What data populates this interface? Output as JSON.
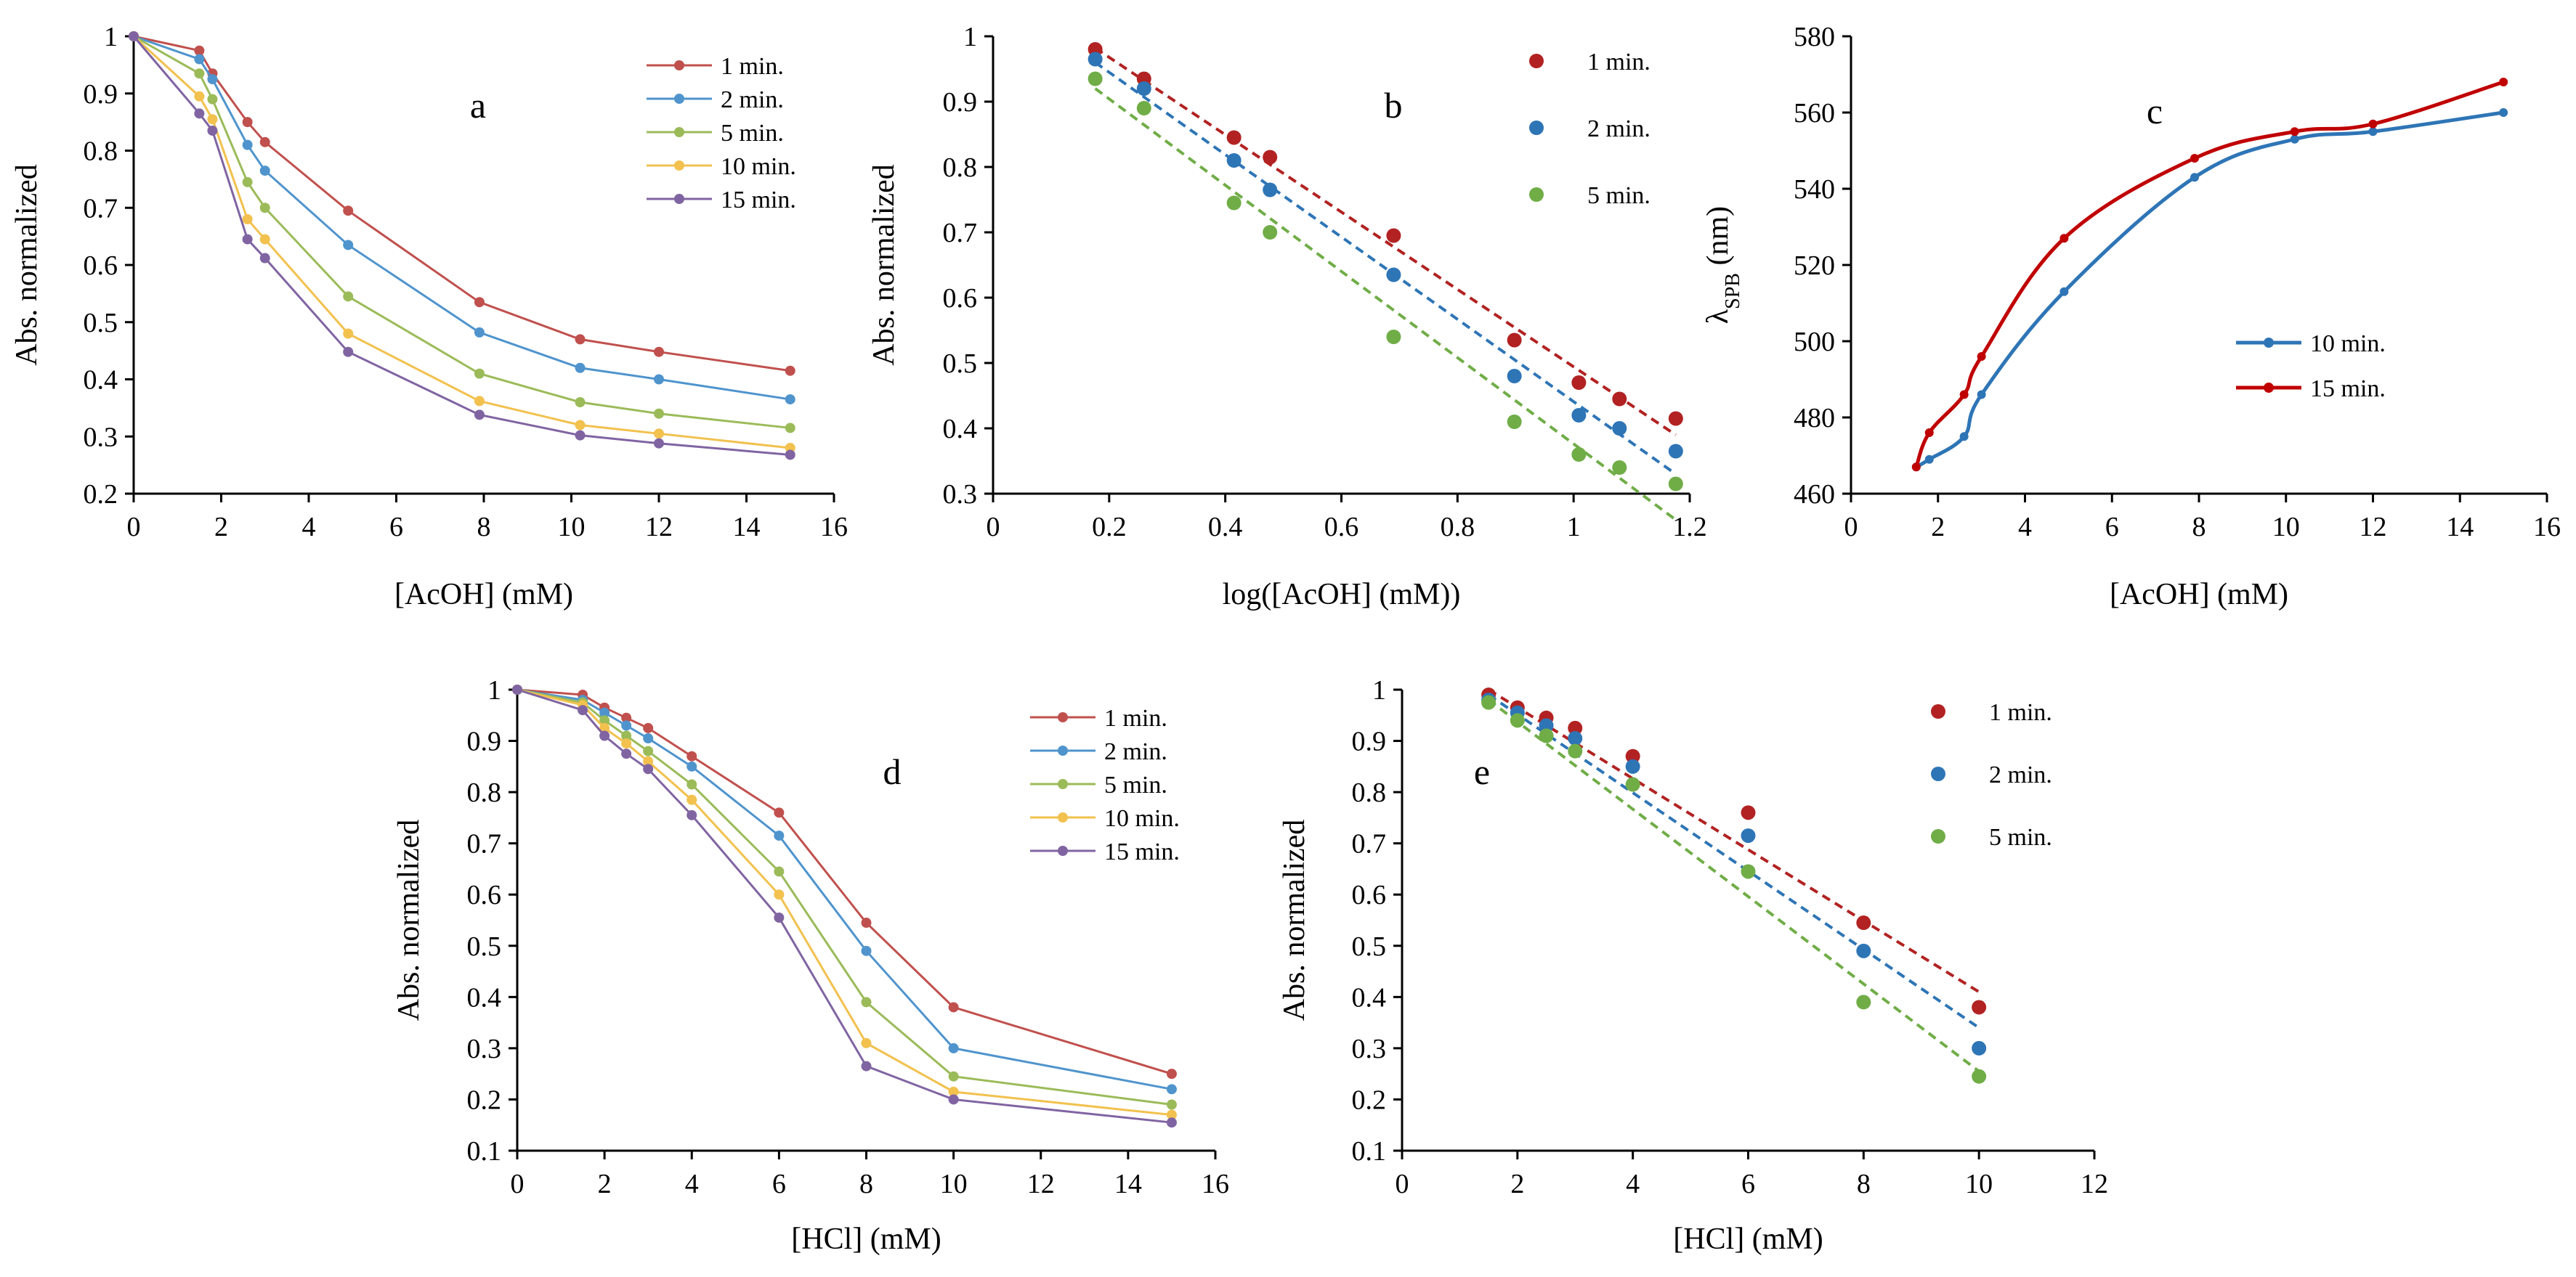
{
  "colors": {
    "s1": "#C0504D",
    "s2": "#4F94CD",
    "s5": "#9BBB59",
    "s10": "#F2C14E",
    "s15": "#8064A2",
    "dot1": "#B22222",
    "dot2": "#2E75B6",
    "dot5": "#70AD47",
    "c10": "#2E75B6",
    "c15": "#C00000"
  },
  "chart_data": [
    {
      "panel": "a",
      "type": "line",
      "label": "a",
      "xlabel": "[AcOH] (mM)",
      "ylabel": "Abs. normalized",
      "xlim": [
        0,
        16
      ],
      "ylim": [
        0.2,
        1
      ],
      "xticks": [
        0,
        2,
        4,
        6,
        8,
        10,
        12,
        14,
        16
      ],
      "xtick_labels": [
        "0",
        "2",
        "4",
        "6",
        "8",
        "10",
        "12",
        "14",
        "16"
      ],
      "yticks": [
        0.2,
        0.3,
        0.4,
        0.5,
        0.6,
        0.7,
        0.8,
        0.9,
        1
      ],
      "ytick_labels": [
        "0.2",
        "0.3",
        "0.4",
        "0.5",
        "0.6",
        "0.7",
        "0.8",
        "0.9",
        "1"
      ],
      "legend_position": "top-right",
      "x": [
        0,
        1.5,
        1.8,
        2.6,
        3.0,
        4.9,
        7.9,
        10.2,
        12.0,
        15.0
      ],
      "series": [
        {
          "name": "1 min.",
          "color_key": "s1",
          "values": [
            1.0,
            0.975,
            0.935,
            0.85,
            0.815,
            0.695,
            0.535,
            0.47,
            0.448,
            0.415
          ]
        },
        {
          "name": "2 min.",
          "color_key": "s2",
          "values": [
            1.0,
            0.96,
            0.925,
            0.81,
            0.765,
            0.635,
            0.482,
            0.42,
            0.4,
            0.365
          ]
        },
        {
          "name": "5 min.",
          "color_key": "s5",
          "values": [
            1.0,
            0.935,
            0.89,
            0.745,
            0.7,
            0.545,
            0.41,
            0.36,
            0.34,
            0.315
          ]
        },
        {
          "name": "10 min.",
          "color_key": "s10",
          "values": [
            1.0,
            0.895,
            0.855,
            0.68,
            0.645,
            0.48,
            0.362,
            0.32,
            0.305,
            0.28
          ]
        },
        {
          "name": "15 min.",
          "color_key": "s15",
          "values": [
            1.0,
            0.865,
            0.835,
            0.645,
            0.612,
            0.448,
            0.338,
            0.302,
            0.288,
            0.268
          ]
        }
      ]
    },
    {
      "panel": "b",
      "type": "scatter",
      "label": "b",
      "xlabel": "log([AcOH] (mM))",
      "ylabel": "Abs. normalized",
      "xlim": [
        0,
        1.2
      ],
      "ylim": [
        0.3,
        1
      ],
      "xticks": [
        0,
        0.2,
        0.4,
        0.6,
        0.8,
        1,
        1.2
      ],
      "xtick_labels": [
        "0",
        "0.2",
        "0.4",
        "0.6",
        "0.8",
        "1",
        "1.2"
      ],
      "yticks": [
        0.3,
        0.4,
        0.5,
        0.6,
        0.7,
        0.8,
        0.9,
        1
      ],
      "ytick_labels": [
        "0.3",
        "0.4",
        "0.5",
        "0.6",
        "0.7",
        "0.8",
        "0.9",
        "1"
      ],
      "legend_position": "top-right",
      "x": [
        0.176,
        0.26,
        0.415,
        0.477,
        0.69,
        0.898,
        1.009,
        1.079,
        1.176
      ],
      "series": [
        {
          "name": "1 min.",
          "color_key": "dot1",
          "values": [
            0.98,
            0.935,
            0.845,
            0.815,
            0.695,
            0.535,
            0.47,
            0.445,
            0.415
          ],
          "fit": [
            [
              0.176,
              0.982
            ],
            [
              1.176,
              0.39
            ]
          ]
        },
        {
          "name": "2 min.",
          "color_key": "dot2",
          "values": [
            0.965,
            0.92,
            0.81,
            0.765,
            0.635,
            0.48,
            0.42,
            0.4,
            0.365
          ],
          "fit": [
            [
              0.176,
              0.96
            ],
            [
              1.176,
              0.33
            ]
          ]
        },
        {
          "name": "5 min.",
          "color_key": "dot5",
          "values": [
            0.935,
            0.89,
            0.745,
            0.7,
            0.54,
            0.41,
            0.36,
            0.34,
            0.315
          ],
          "fit": [
            [
              0.176,
              0.92
            ],
            [
              1.176,
              0.26
            ]
          ]
        }
      ]
    },
    {
      "panel": "c",
      "type": "line",
      "label": "c",
      "xlabel": "[AcOH] (mM)",
      "ylabel_main": "λ",
      "ylabel_sub": "SPB",
      "ylabel_unit": " (nm)",
      "xlim": [
        0,
        16
      ],
      "ylim": [
        460,
        580
      ],
      "xticks": [
        0,
        2,
        4,
        6,
        8,
        10,
        12,
        14,
        16
      ],
      "xtick_labels": [
        "0",
        "2",
        "4",
        "6",
        "8",
        "10",
        "12",
        "14",
        "16"
      ],
      "yticks": [
        460,
        480,
        500,
        520,
        540,
        560,
        580
      ],
      "ytick_labels": [
        "460",
        "480",
        "500",
        "520",
        "540",
        "560",
        "580"
      ],
      "legend_position": "center-right",
      "series": [
        {
          "name": "10 min.",
          "color_key": "c10",
          "x": [
            1.5,
            1.8,
            2.6,
            3.0,
            4.9,
            7.9,
            10.2,
            12.0,
            15.0
          ],
          "values": [
            467,
            469,
            475,
            486,
            513,
            543,
            553,
            555,
            560
          ]
        },
        {
          "name": "15 min.",
          "color_key": "c15",
          "x": [
            1.5,
            1.8,
            2.6,
            3.0,
            4.9,
            7.9,
            10.2,
            12.0,
            15.0
          ],
          "values": [
            467,
            476,
            486,
            496,
            527,
            548,
            555,
            557,
            568
          ]
        }
      ]
    },
    {
      "panel": "d",
      "type": "line",
      "label": "d",
      "xlabel": "[HCl] (mM)",
      "ylabel": "Abs. normalized",
      "xlim": [
        0,
        16
      ],
      "ylim": [
        0.1,
        1
      ],
      "xticks": [
        0,
        2,
        4,
        6,
        8,
        10,
        12,
        14,
        16
      ],
      "xtick_labels": [
        "0",
        "2",
        "4",
        "6",
        "8",
        "10",
        "12",
        "14",
        "16"
      ],
      "yticks": [
        0.1,
        0.2,
        0.3,
        0.4,
        0.5,
        0.6,
        0.7,
        0.8,
        0.9,
        1
      ],
      "ytick_labels": [
        "0.1",
        "0.2",
        "0.3",
        "0.4",
        "0.5",
        "0.6",
        "0.7",
        "0.8",
        "0.9",
        "1"
      ],
      "legend_position": "top-right",
      "x": [
        0,
        1.5,
        2.0,
        2.5,
        3.0,
        4.0,
        6.0,
        8.0,
        10.0,
        15.0
      ],
      "series": [
        {
          "name": "1 min.",
          "color_key": "s1",
          "values": [
            1.0,
            0.99,
            0.965,
            0.945,
            0.925,
            0.87,
            0.76,
            0.545,
            0.38,
            0.25
          ]
        },
        {
          "name": "2 min.",
          "color_key": "s2",
          "values": [
            1.0,
            0.98,
            0.955,
            0.93,
            0.905,
            0.85,
            0.715,
            0.49,
            0.3,
            0.22
          ]
        },
        {
          "name": "5 min.",
          "color_key": "s5",
          "values": [
            1.0,
            0.975,
            0.94,
            0.91,
            0.88,
            0.815,
            0.645,
            0.39,
            0.245,
            0.19
          ]
        },
        {
          "name": "10 min.",
          "color_key": "s10",
          "values": [
            1.0,
            0.97,
            0.925,
            0.895,
            0.86,
            0.785,
            0.6,
            0.31,
            0.215,
            0.17
          ]
        },
        {
          "name": "15 min.",
          "color_key": "s15",
          "values": [
            1.0,
            0.96,
            0.91,
            0.875,
            0.845,
            0.755,
            0.555,
            0.265,
            0.2,
            0.155
          ]
        }
      ]
    },
    {
      "panel": "e",
      "type": "scatter",
      "label": "e",
      "xlabel": "[HCl] (mM)",
      "ylabel": "Abs. normalized",
      "xlim": [
        0,
        12
      ],
      "ylim": [
        0.1,
        1
      ],
      "xticks": [
        0,
        2,
        4,
        6,
        8,
        10,
        12
      ],
      "xtick_labels": [
        "0",
        "2",
        "4",
        "6",
        "8",
        "10",
        "12"
      ],
      "yticks": [
        0.1,
        0.2,
        0.3,
        0.4,
        0.5,
        0.6,
        0.7,
        0.8,
        0.9,
        1
      ],
      "ytick_labels": [
        "0.1",
        "0.2",
        "0.3",
        "0.4",
        "0.5",
        "0.6",
        "0.7",
        "0.8",
        "0.9",
        "1"
      ],
      "legend_position": "top-right",
      "x": [
        1.5,
        2.0,
        2.5,
        3.0,
        4.0,
        6.0,
        8.0,
        10.0
      ],
      "series": [
        {
          "name": "1 min.",
          "color_key": "dot1",
          "values": [
            0.99,
            0.965,
            0.945,
            0.925,
            0.87,
            0.76,
            0.545,
            0.38
          ],
          "fit": [
            [
              1.5,
              1.0
            ],
            [
              10.0,
              0.41
            ]
          ]
        },
        {
          "name": "2 min.",
          "color_key": "dot2",
          "values": [
            0.98,
            0.955,
            0.93,
            0.905,
            0.85,
            0.715,
            0.49,
            0.3
          ],
          "fit": [
            [
              1.5,
              0.99
            ],
            [
              10.0,
              0.34
            ]
          ]
        },
        {
          "name": "5 min.",
          "color_key": "dot5",
          "values": [
            0.975,
            0.94,
            0.91,
            0.88,
            0.815,
            0.645,
            0.39,
            0.245
          ],
          "fit": [
            [
              1.5,
              0.98
            ],
            [
              10.0,
              0.255
            ]
          ]
        }
      ]
    }
  ]
}
